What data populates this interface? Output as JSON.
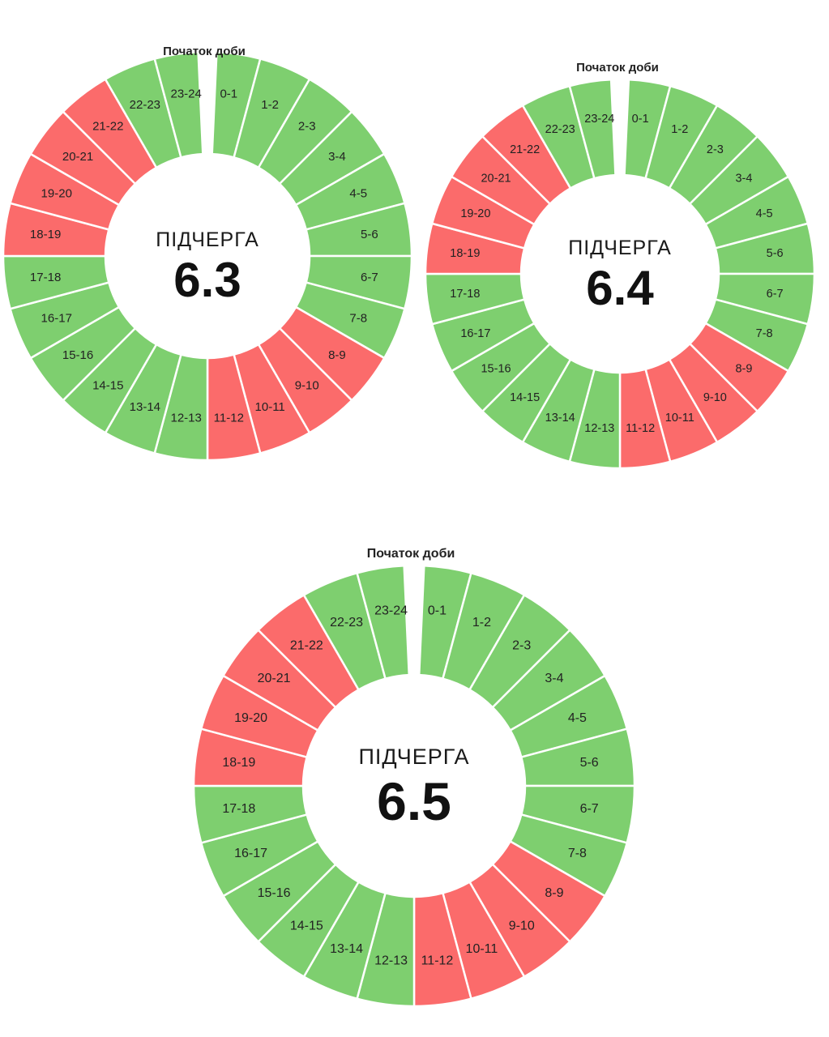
{
  "colors": {
    "on": "#7ecf6f",
    "off": "#fb6b6b",
    "separator": "#ffffff"
  },
  "chart_data": [
    {
      "type": "donut-schedule",
      "start_label": "Початок доби",
      "subtitle": "ПІДЧЕРГА",
      "number": "6.3",
      "segments": [
        {
          "label": "0-1",
          "status": "on"
        },
        {
          "label": "1-2",
          "status": "on"
        },
        {
          "label": "2-3",
          "status": "on"
        },
        {
          "label": "3-4",
          "status": "on"
        },
        {
          "label": "4-5",
          "status": "on"
        },
        {
          "label": "5-6",
          "status": "on"
        },
        {
          "label": "6-7",
          "status": "on"
        },
        {
          "label": "7-8",
          "status": "on"
        },
        {
          "label": "8-9",
          "status": "off"
        },
        {
          "label": "9-10",
          "status": "off"
        },
        {
          "label": "10-11",
          "status": "off"
        },
        {
          "label": "11-12",
          "status": "off"
        },
        {
          "label": "12-13",
          "status": "on"
        },
        {
          "label": "13-14",
          "status": "on"
        },
        {
          "label": "14-15",
          "status": "on"
        },
        {
          "label": "15-16",
          "status": "on"
        },
        {
          "label": "16-17",
          "status": "on"
        },
        {
          "label": "17-18",
          "status": "on"
        },
        {
          "label": "18-19",
          "status": "off"
        },
        {
          "label": "19-20",
          "status": "off"
        },
        {
          "label": "20-21",
          "status": "off"
        },
        {
          "label": "21-22",
          "status": "off"
        },
        {
          "label": "22-23",
          "status": "on"
        },
        {
          "label": "23-24",
          "status": "on"
        }
      ]
    },
    {
      "type": "donut-schedule",
      "start_label": "Початок доби",
      "subtitle": "ПІДЧЕРГА",
      "number": "6.4",
      "segments": [
        {
          "label": "0-1",
          "status": "on"
        },
        {
          "label": "1-2",
          "status": "on"
        },
        {
          "label": "2-3",
          "status": "on"
        },
        {
          "label": "3-4",
          "status": "on"
        },
        {
          "label": "4-5",
          "status": "on"
        },
        {
          "label": "5-6",
          "status": "on"
        },
        {
          "label": "6-7",
          "status": "on"
        },
        {
          "label": "7-8",
          "status": "on"
        },
        {
          "label": "8-9",
          "status": "off"
        },
        {
          "label": "9-10",
          "status": "off"
        },
        {
          "label": "10-11",
          "status": "off"
        },
        {
          "label": "11-12",
          "status": "off"
        },
        {
          "label": "12-13",
          "status": "on"
        },
        {
          "label": "13-14",
          "status": "on"
        },
        {
          "label": "14-15",
          "status": "on"
        },
        {
          "label": "15-16",
          "status": "on"
        },
        {
          "label": "16-17",
          "status": "on"
        },
        {
          "label": "17-18",
          "status": "on"
        },
        {
          "label": "18-19",
          "status": "off"
        },
        {
          "label": "19-20",
          "status": "off"
        },
        {
          "label": "20-21",
          "status": "off"
        },
        {
          "label": "21-22",
          "status": "off"
        },
        {
          "label": "22-23",
          "status": "on"
        },
        {
          "label": "23-24",
          "status": "on"
        }
      ]
    },
    {
      "type": "donut-schedule",
      "start_label": "Початок доби",
      "subtitle": "ПІДЧЕРГА",
      "number": "6.5",
      "segments": [
        {
          "label": "0-1",
          "status": "on"
        },
        {
          "label": "1-2",
          "status": "on"
        },
        {
          "label": "2-3",
          "status": "on"
        },
        {
          "label": "3-4",
          "status": "on"
        },
        {
          "label": "4-5",
          "status": "on"
        },
        {
          "label": "5-6",
          "status": "on"
        },
        {
          "label": "6-7",
          "status": "on"
        },
        {
          "label": "7-8",
          "status": "on"
        },
        {
          "label": "8-9",
          "status": "off"
        },
        {
          "label": "9-10",
          "status": "off"
        },
        {
          "label": "10-11",
          "status": "off"
        },
        {
          "label": "11-12",
          "status": "off"
        },
        {
          "label": "12-13",
          "status": "on"
        },
        {
          "label": "13-14",
          "status": "on"
        },
        {
          "label": "14-15",
          "status": "on"
        },
        {
          "label": "15-16",
          "status": "on"
        },
        {
          "label": "16-17",
          "status": "on"
        },
        {
          "label": "17-18",
          "status": "on"
        },
        {
          "label": "18-19",
          "status": "off"
        },
        {
          "label": "19-20",
          "status": "off"
        },
        {
          "label": "20-21",
          "status": "off"
        },
        {
          "label": "21-22",
          "status": "off"
        },
        {
          "label": "22-23",
          "status": "on"
        },
        {
          "label": "23-24",
          "status": "on"
        }
      ]
    }
  ]
}
